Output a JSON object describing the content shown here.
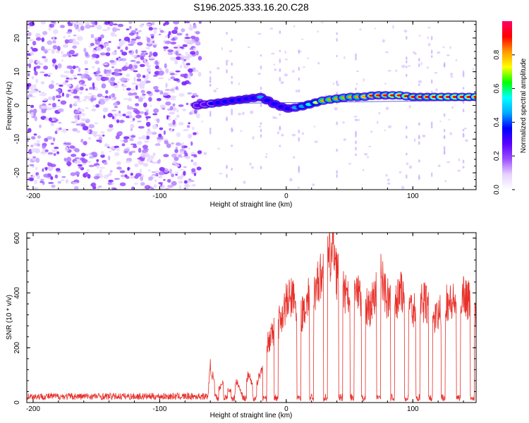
{
  "chart_data": [
    {
      "type": "heatmap",
      "title": "S196.2025.333.16.20.C28",
      "xlabel": "Height of straight line (km)",
      "ylabel": "Frequency (Hz)",
      "xlim": [
        -205,
        150
      ],
      "ylim": [
        -25,
        25
      ],
      "x_ticks": [
        -200,
        -100,
        0,
        100
      ],
      "y_ticks": [
        -20,
        -10,
        0,
        10,
        20
      ],
      "colorbar": {
        "label": "Normalized spectral amplitude",
        "range": [
          0,
          1
        ],
        "ticks": [
          "0.0",
          "0.2",
          "0.4",
          "0.6",
          "0.8"
        ],
        "colors": [
          "#ffffff",
          "#e6d2ff",
          "#9b4dff",
          "#5a00ff",
          "#0000ff",
          "#00aaff",
          "#00ffff",
          "#00ff00",
          "#ffff00",
          "#ff9900",
          "#ff0000",
          "#ff0066"
        ]
      },
      "ridge": {
        "x": [
          -70,
          -60,
          -50,
          -40,
          -30,
          -20,
          -10,
          0,
          10,
          20,
          30,
          40,
          50,
          60,
          70,
          80,
          90,
          100,
          110,
          120,
          130,
          140,
          150
        ],
        "freq": [
          0,
          0.5,
          1,
          1.5,
          2,
          2.5,
          0.5,
          -1,
          -0.5,
          0.5,
          1.5,
          2,
          2.5,
          2.5,
          3,
          3,
          3,
          2.5,
          2.5,
          2.5,
          2.5,
          2.5,
          2.5
        ],
        "amplitude": [
          0.35,
          0.4,
          0.45,
          0.45,
          0.45,
          0.55,
          0.45,
          0.5,
          0.55,
          0.7,
          0.8,
          0.8,
          0.85,
          0.85,
          0.9,
          0.9,
          0.95,
          0.9,
          0.9,
          0.95,
          0.95,
          0.95,
          0.95
        ]
      }
    },
    {
      "type": "line",
      "xlabel": "Height of straight line (km)",
      "ylabel": "SNR (10 * v/v)",
      "xlim": [
        -205,
        150
      ],
      "ylim": [
        0,
        620
      ],
      "x_ticks": [
        -200,
        -100,
        0,
        100
      ],
      "y_ticks": [
        0,
        200,
        400,
        600
      ],
      "series": [
        {
          "name": "SNR",
          "color": "#e8302a",
          "x": [
            -205,
            -190,
            -175,
            -160,
            -145,
            -130,
            -115,
            -100,
            -85,
            -70,
            -62,
            -60,
            -55,
            -50,
            -45,
            -40,
            -35,
            -30,
            -25,
            -20,
            -15,
            -10,
            -5,
            0,
            5,
            10,
            15,
            20,
            25,
            30,
            35,
            38,
            40,
            45,
            50,
            55,
            60,
            65,
            70,
            75,
            80,
            85,
            90,
            95,
            100,
            105,
            110,
            115,
            120,
            125,
            130,
            135,
            140,
            145,
            150
          ],
          "y": [
            20,
            20,
            20,
            20,
            20,
            20,
            20,
            20,
            20,
            20,
            20,
            140,
            40,
            80,
            40,
            90,
            30,
            110,
            50,
            120,
            220,
            270,
            320,
            380,
            410,
            300,
            380,
            420,
            460,
            500,
            560,
            610,
            500,
            430,
            380,
            420,
            380,
            360,
            400,
            480,
            400,
            360,
            420,
            390,
            350,
            370,
            390,
            320,
            330,
            400,
            380,
            390,
            420,
            390,
            350
          ]
        }
      ]
    }
  ]
}
